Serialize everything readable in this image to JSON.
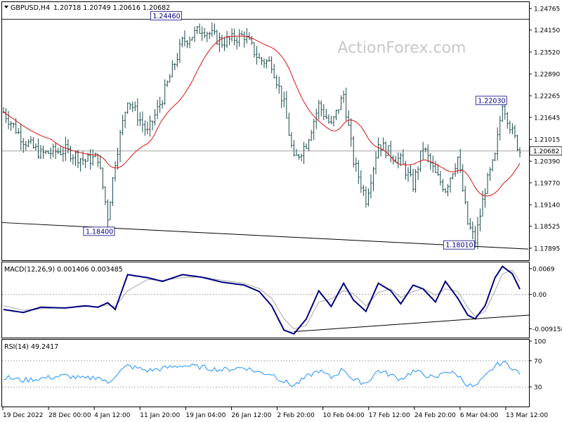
{
  "header": {
    "symbol": "GBPUSD,H4",
    "ohlc": "1.20718 1.20749 1.20616 1.20682",
    "watermark": "ActionForex.com"
  },
  "colors": {
    "candle": "#1a4a4a",
    "ma": "#dd1111",
    "macd_line": "#000080",
    "signal_line": "#a8a8a8",
    "rsi_line": "#1e90ff",
    "level_line": "#999999",
    "trend_line": "#000000"
  },
  "chart_data": [
    {
      "type": "candlestick",
      "title": "GBPUSD,H4",
      "ylim": [
        1.1755,
        1.2495
      ],
      "y_ticks": [
        "1.24765",
        "1.24150",
        "1.23520",
        "1.22890",
        "1.22265",
        "1.21645",
        "1.21015",
        "1.20390",
        "1.19770",
        "1.19140",
        "1.18525",
        "1.17895"
      ],
      "x_labels": [
        "19 Dec 2022",
        "28 Dec 00:00",
        "4 Jan 12:00",
        "11 Jan 20:00",
        "19 Jan 04:00",
        "26 Jan 12:00",
        "2 Feb 20:00",
        "10 Feb 04:00",
        "17 Feb 12:00",
        "24 Feb 20:00",
        "6 Mar 04:00",
        "13 Mar 12:00"
      ],
      "current_price": "1.20682",
      "annotations": [
        {
          "label": "1.24460",
          "bar": 70,
          "value": 1.2446
        },
        {
          "label": "1.18400",
          "bar": 43,
          "value": 1.184
        },
        {
          "label": "1.18010",
          "bar": 188,
          "value": 1.1801
        },
        {
          "label": "1.22030",
          "bar": 201,
          "value": 1.2203
        }
      ],
      "resistance_line": 1.2446,
      "trendline": [
        [
          0,
          1.1863
        ],
        [
          208,
          1.1787
        ]
      ],
      "close_anchors": [
        [
          0,
          1.218
        ],
        [
          8,
          1.21
        ],
        [
          15,
          1.206
        ],
        [
          25,
          1.207
        ],
        [
          33,
          1.204
        ],
        [
          38,
          1.205
        ],
        [
          42,
          1.188
        ],
        [
          45,
          1.204
        ],
        [
          50,
          1.222
        ],
        [
          58,
          1.212
        ],
        [
          64,
          1.222
        ],
        [
          72,
          1.238
        ],
        [
          80,
          1.242
        ],
        [
          88,
          1.238
        ],
        [
          97,
          1.24
        ],
        [
          103,
          1.233
        ],
        [
          108,
          1.232
        ],
        [
          113,
          1.22
        ],
        [
          117,
          1.204
        ],
        [
          122,
          1.209
        ],
        [
          127,
          1.22
        ],
        [
          132,
          1.214
        ],
        [
          137,
          1.223
        ],
        [
          141,
          1.204
        ],
        [
          146,
          1.193
        ],
        [
          151,
          1.209
        ],
        [
          156,
          1.206
        ],
        [
          160,
          1.204
        ],
        [
          165,
          1.197
        ],
        [
          169,
          1.208
        ],
        [
          174,
          1.2
        ],
        [
          178,
          1.196
        ],
        [
          183,
          1.205
        ],
        [
          187,
          1.186
        ],
        [
          190,
          1.181
        ],
        [
          194,
          1.196
        ],
        [
          198,
          1.205
        ],
        [
          201,
          1.221
        ],
        [
          205,
          1.212
        ],
        [
          208,
          1.2068
        ]
      ],
      "ma_period": 20
    },
    {
      "type": "line",
      "title": "MACD(12,26,9) 0.001406 0.003485",
      "ylim": [
        -0.0115,
        0.0082
      ],
      "y_ticks": [
        "0.0069",
        "0.00",
        "-0.009158"
      ],
      "series": [
        {
          "name": "MACD",
          "anchors": [
            [
              0,
              -0.004
            ],
            [
              8,
              -0.0048
            ],
            [
              15,
              -0.0034
            ],
            [
              25,
              -0.0036
            ],
            [
              33,
              -0.003
            ],
            [
              38,
              -0.0034
            ],
            [
              42,
              -0.0022
            ],
            [
              45,
              -0.004
            ],
            [
              50,
              0.0053
            ],
            [
              58,
              0.0045
            ],
            [
              64,
              0.0035
            ],
            [
              72,
              0.0053
            ],
            [
              80,
              0.0046
            ],
            [
              88,
              0.0033
            ],
            [
              97,
              0.0025
            ],
            [
              103,
              0.0008
            ],
            [
              108,
              -0.003
            ],
            [
              113,
              -0.0095
            ],
            [
              117,
              -0.0105
            ],
            [
              122,
              -0.0065
            ],
            [
              127,
              0.001
            ],
            [
              132,
              -0.0032
            ],
            [
              137,
              0.003
            ],
            [
              141,
              -0.0015
            ],
            [
              146,
              -0.0045
            ],
            [
              151,
              0.003
            ],
            [
              156,
              0.001
            ],
            [
              160,
              -0.0025
            ],
            [
              165,
              0.0025
            ],
            [
              169,
              0.0015
            ],
            [
              174,
              -0.002
            ],
            [
              178,
              0.0035
            ],
            [
              183,
              -0.001
            ],
            [
              187,
              -0.0055
            ],
            [
              190,
              -0.0065
            ],
            [
              194,
              -0.003
            ],
            [
              198,
              0.0045
            ],
            [
              201,
              0.0075
            ],
            [
              205,
              0.0055
            ],
            [
              208,
              0.0014
            ]
          ]
        },
        {
          "name": "Signal",
          "anchors": [
            [
              0,
              -0.003
            ],
            [
              8,
              -0.0042
            ],
            [
              15,
              -0.0038
            ],
            [
              25,
              -0.0035
            ],
            [
              33,
              -0.0032
            ],
            [
              38,
              -0.0033
            ],
            [
              42,
              -0.0028
            ],
            [
              45,
              -0.0032
            ],
            [
              50,
              0.001
            ],
            [
              58,
              0.004
            ],
            [
              64,
              0.0038
            ],
            [
              72,
              0.0045
            ],
            [
              80,
              0.0047
            ],
            [
              88,
              0.0038
            ],
            [
              97,
              0.003
            ],
            [
              103,
              0.0016
            ],
            [
              108,
              -0.001
            ],
            [
              113,
              -0.0065
            ],
            [
              117,
              -0.0092
            ],
            [
              122,
              -0.0082
            ],
            [
              127,
              -0.002
            ],
            [
              132,
              -0.0012
            ],
            [
              137,
              0.001
            ],
            [
              141,
              0.0002
            ],
            [
              146,
              -0.003
            ],
            [
              151,
              0.0005
            ],
            [
              156,
              0.0015
            ],
            [
              160,
              -0.0008
            ],
            [
              165,
              0.0008
            ],
            [
              169,
              0.0016
            ],
            [
              174,
              -0.0002
            ],
            [
              178,
              0.0015
            ],
            [
              183,
              0.0008
            ],
            [
              187,
              -0.0035
            ],
            [
              190,
              -0.0058
            ],
            [
              194,
              -0.0045
            ],
            [
              198,
              0.001
            ],
            [
              201,
              0.0055
            ],
            [
              205,
              0.0065
            ],
            [
              208,
              0.0035
            ]
          ]
        }
      ],
      "trendline": [
        [
          117,
          -0.0099
        ],
        [
          208,
          -0.0055
        ]
      ]
    },
    {
      "type": "line",
      "title": "RSI(14) 49.2417",
      "ylim": [
        0,
        100
      ],
      "y_ticks": [
        "100",
        "70",
        "30",
        "0"
      ],
      "levels": [
        70,
        30
      ],
      "series": [
        {
          "name": "RSI",
          "anchors": [
            [
              0,
              45
            ],
            [
              8,
              40
            ],
            [
              15,
              43
            ],
            [
              25,
              47
            ],
            [
              33,
              42
            ],
            [
              38,
              46
            ],
            [
              42,
              35
            ],
            [
              45,
              48
            ],
            [
              50,
              62
            ],
            [
              58,
              55
            ],
            [
              64,
              58
            ],
            [
              72,
              63
            ],
            [
              80,
              60
            ],
            [
              88,
              56
            ],
            [
              97,
              60
            ],
            [
              103,
              52
            ],
            [
              108,
              50
            ],
            [
              113,
              38
            ],
            [
              117,
              32
            ],
            [
              122,
              45
            ],
            [
              127,
              55
            ],
            [
              132,
              44
            ],
            [
              137,
              58
            ],
            [
              141,
              40
            ],
            [
              146,
              36
            ],
            [
              151,
              55
            ],
            [
              156,
              48
            ],
            [
              160,
              42
            ],
            [
              165,
              54
            ],
            [
              169,
              50
            ],
            [
              174,
              42
            ],
            [
              178,
              55
            ],
            [
              183,
              48
            ],
            [
              187,
              33
            ],
            [
              190,
              30
            ],
            [
              194,
              45
            ],
            [
              198,
              62
            ],
            [
              201,
              68
            ],
            [
              205,
              60
            ],
            [
              208,
              49.24
            ]
          ]
        }
      ]
    }
  ]
}
